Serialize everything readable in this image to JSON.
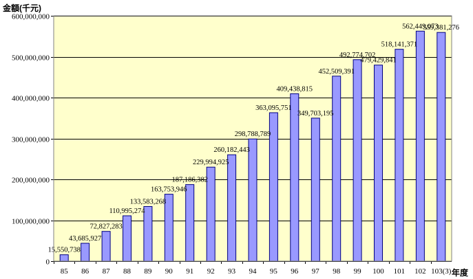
{
  "chart_data": {
    "type": "bar",
    "ylabel": "金額(千元)",
    "xlabel": "年度",
    "categories": [
      "85",
      "86",
      "87",
      "88",
      "89",
      "90",
      "91",
      "92",
      "93",
      "94",
      "95",
      "96",
      "97",
      "98",
      "99",
      "100",
      "101",
      "102",
      "103(3)"
    ],
    "values": [
      15550738,
      43685927,
      72827283,
      110995274,
      133583268,
      163753946,
      187186382,
      229994925,
      260182443,
      298788789,
      363095751,
      409438815,
      349703195,
      452509391,
      492774702,
      479429841,
      518141371,
      562449073,
      559381276
    ],
    "data_labels": [
      "15,550,738",
      "43,685,927",
      "72,827,283",
      "110,995,274",
      "133,583,268",
      "163,753,946",
      "187,186,382",
      "229,994,925",
      "260,182,443",
      "298,788,789",
      "363,095,751",
      "409,438,815",
      "349,703,195",
      "452,509,391",
      "492,774,702",
      "479,429,841",
      "518,141,371",
      "562,449,073",
      "559,381,276"
    ],
    "ylim": [
      0,
      600000000
    ],
    "yticks": [
      0,
      100000000,
      200000000,
      300000000,
      400000000,
      500000000,
      600000000
    ],
    "ytick_labels": [
      "0",
      "100,000,000",
      "200,000,000",
      "300,000,000",
      "400,000,000",
      "500,000,000",
      "600,000,000"
    ],
    "grid": true,
    "colors": {
      "plot_background": "#ffffcc",
      "bar_fill": "#9999ff",
      "bar_stroke": "#000080",
      "grid": "#000000"
    }
  }
}
